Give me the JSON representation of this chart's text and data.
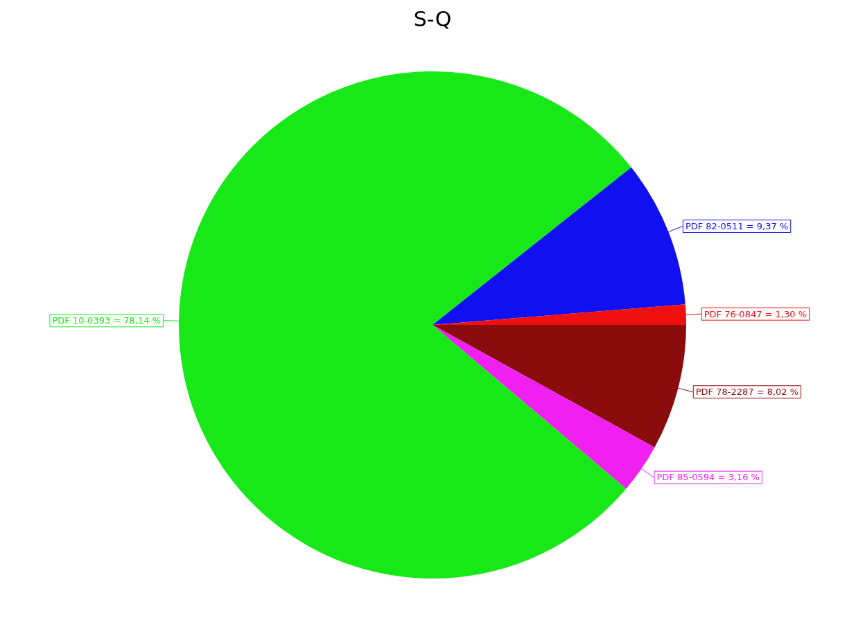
{
  "chart_data": {
    "type": "pie",
    "title": "S-Q",
    "categories": [
      "PDF 78-2287",
      "PDF 85-0594",
      "PDF 10-0393",
      "PDF 82-0511",
      "PDF 76-0847"
    ],
    "values": [
      8.02,
      3.16,
      78.14,
      9.37,
      1.3
    ],
    "value_labels": [
      "= 8,02 %",
      "= 3,16 %",
      "= 78,14 %",
      "= 9,37 %",
      "= 1,30 %"
    ],
    "colors": [
      "#8b0c0c",
      "#f020f0",
      "#18e818",
      "#1010f0",
      "#f01010"
    ],
    "legend": false
  }
}
